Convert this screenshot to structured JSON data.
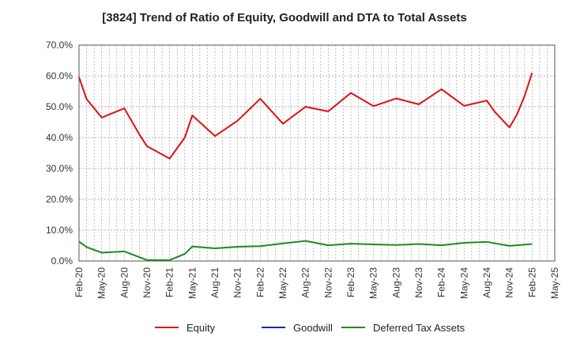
{
  "chart_data": {
    "type": "line",
    "title": "[3824]  Trend of Ratio of Equity, Goodwill and DTA to Total Assets",
    "xlabel": "",
    "ylabel": "",
    "ylim": [
      0,
      70
    ],
    "y_ticks": [
      "0.0%",
      "10.0%",
      "20.0%",
      "30.0%",
      "40.0%",
      "50.0%",
      "60.0%",
      "70.0%"
    ],
    "x_ticks": [
      "Feb-20",
      "May-20",
      "Aug-20",
      "Nov-20",
      "Feb-21",
      "May-21",
      "Aug-21",
      "Nov-21",
      "Feb-22",
      "May-22",
      "Aug-22",
      "Nov-22",
      "Feb-23",
      "May-23",
      "Aug-23",
      "Nov-23",
      "Feb-24",
      "May-24",
      "Aug-24",
      "Nov-24",
      "Feb-25",
      "May-25"
    ],
    "grid": true,
    "legend_position": "bottom",
    "series": [
      {
        "name": "Equity",
        "color": "#dd1111",
        "points": [
          [
            "Feb-20",
            59.6
          ],
          [
            "Mar-20",
            52.5
          ],
          [
            "May-20",
            46.5
          ],
          [
            "Aug-20",
            49.5
          ],
          [
            "Oct-20",
            41.0
          ],
          [
            "Nov-20",
            37.2
          ],
          [
            "Feb-21",
            33.2
          ],
          [
            "Apr-21",
            40.0
          ],
          [
            "May-21",
            47.2
          ],
          [
            "Aug-21",
            40.5
          ],
          [
            "Nov-21",
            45.5
          ],
          [
            "Feb-22",
            52.6
          ],
          [
            "May-22",
            44.5
          ],
          [
            "Aug-22",
            50.0
          ],
          [
            "Nov-22",
            48.5
          ],
          [
            "Feb-23",
            54.5
          ],
          [
            "May-23",
            50.2
          ],
          [
            "Aug-23",
            52.7
          ],
          [
            "Nov-23",
            50.8
          ],
          [
            "Feb-24",
            55.7
          ],
          [
            "May-24",
            50.3
          ],
          [
            "Aug-24",
            52.0
          ],
          [
            "Sep-24",
            48.5
          ],
          [
            "Nov-24",
            43.3
          ],
          [
            "Dec-24",
            47.5
          ],
          [
            "Jan-25",
            53.5
          ],
          [
            "Feb-25",
            61.0
          ]
        ]
      },
      {
        "name": "Goodwill",
        "color": "#1122cc",
        "points": []
      },
      {
        "name": "Deferred Tax Assets",
        "color": "#228822",
        "points": [
          [
            "Feb-20",
            6.3
          ],
          [
            "Mar-20",
            4.5
          ],
          [
            "May-20",
            2.7
          ],
          [
            "Aug-20",
            3.1
          ],
          [
            "Nov-20",
            0.3
          ],
          [
            "Feb-21",
            0.3
          ],
          [
            "Apr-21",
            2.3
          ],
          [
            "May-21",
            4.7
          ],
          [
            "Aug-21",
            4.1
          ],
          [
            "Nov-21",
            4.6
          ],
          [
            "Feb-22",
            4.8
          ],
          [
            "May-22",
            5.7
          ],
          [
            "Aug-22",
            6.5
          ],
          [
            "Nov-22",
            5.1
          ],
          [
            "Feb-23",
            5.6
          ],
          [
            "May-23",
            5.4
          ],
          [
            "Aug-23",
            5.2
          ],
          [
            "Nov-23",
            5.5
          ],
          [
            "Feb-24",
            5.1
          ],
          [
            "May-24",
            5.9
          ],
          [
            "Aug-24",
            6.2
          ],
          [
            "Nov-24",
            4.9
          ],
          [
            "Feb-25",
            5.5
          ]
        ]
      }
    ]
  }
}
